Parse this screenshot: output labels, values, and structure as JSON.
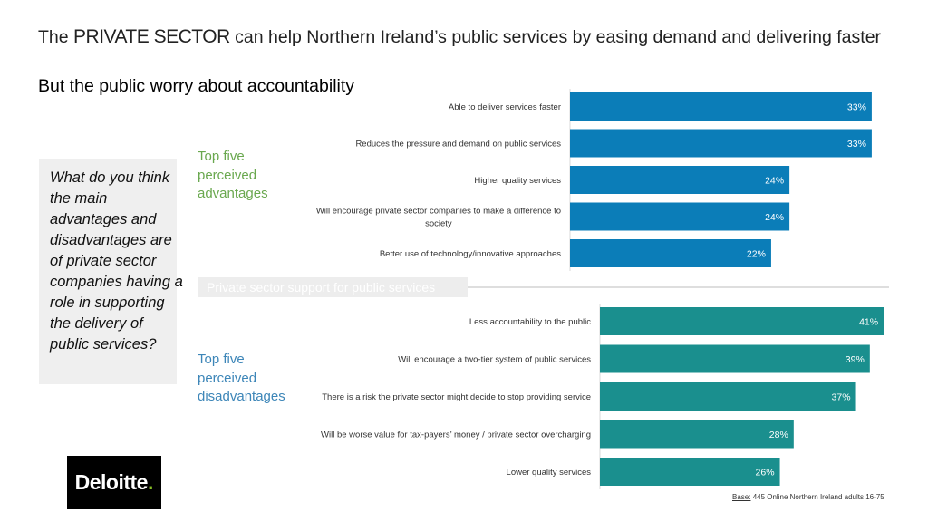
{
  "header": {
    "title_prefix": "The ",
    "title_highlight": "PRIVATE SECTOR",
    "title_rest": " can help Northern Ireland’s public services by easing demand and delivering faster",
    "subtitle": "But the public worry about accountability"
  },
  "question": "What do you think the main advantages and disadvantages are of private sector companies having a role in supporting the delivery of public services?",
  "labels": {
    "advantages": "Top five perceived advantages",
    "disadvantages": "Top five perceived disadvantages",
    "divider": "Private sector support for public services"
  },
  "colors": {
    "advantages_bar": "#0b7db8",
    "disadvantages_bar": "#1a8f8e",
    "advantages_label": "#6aa84f",
    "disadvantages_label": "#3d86b8",
    "logo_dot": "#86bc25"
  },
  "chart_data": [
    {
      "type": "bar",
      "orientation": "horizontal",
      "categories": [
        "Able to deliver services faster",
        "Reduces the pressure and demand on public services",
        "Higher quality services",
        "Will encourage private sector companies to make a difference to society",
        "Better use of technology/innovative approaches"
      ],
      "values": [
        33,
        33,
        24,
        24,
        22
      ],
      "value_suffix": "%",
      "xlim": [
        0,
        34
      ],
      "grid": false
    },
    {
      "type": "bar",
      "orientation": "horizontal",
      "categories": [
        "Less accountability to the public",
        "Will encourage a two-tier system of public services",
        "There is a risk the private sector might decide to stop providing service",
        "Will be worse value for tax-payers’ money / private sector overcharging",
        "Lower quality services"
      ],
      "values": [
        41,
        39,
        37,
        28,
        26
      ],
      "value_suffix": "%",
      "xlim": [
        0,
        44
      ],
      "grid": false
    }
  ],
  "logo": {
    "word": "Deloitte",
    "dot": "."
  },
  "footer": {
    "base_label": "Base:",
    "base_text": " 445 Online Northern Ireland adults 16-75"
  }
}
